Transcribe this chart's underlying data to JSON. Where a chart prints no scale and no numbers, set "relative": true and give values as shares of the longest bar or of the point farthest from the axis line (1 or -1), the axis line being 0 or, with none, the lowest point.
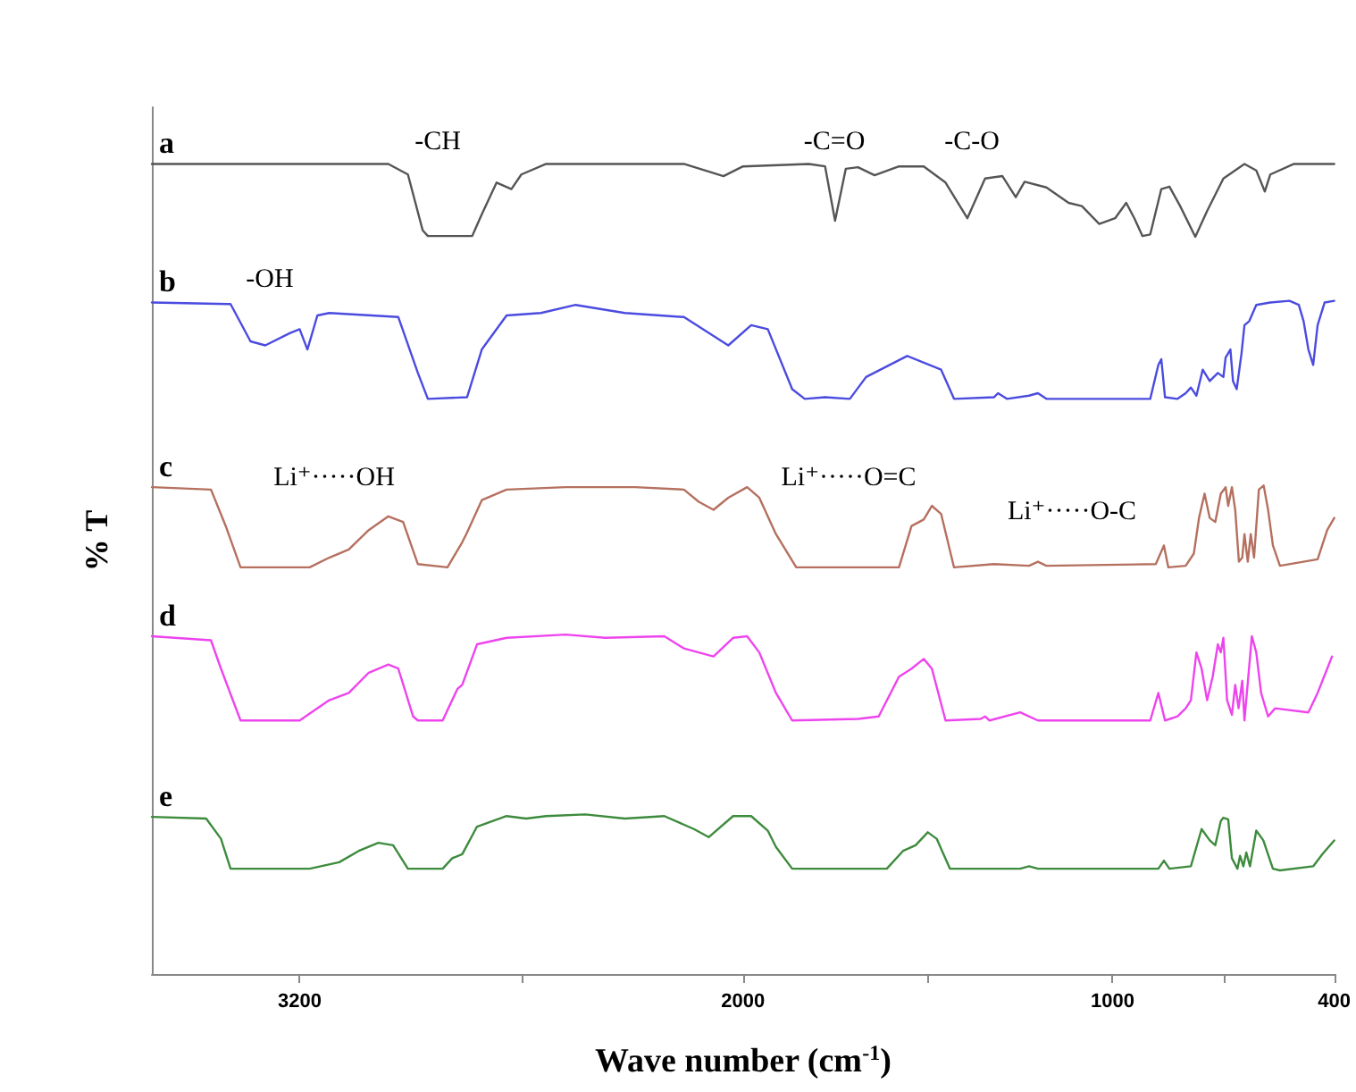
{
  "chart_data": {
    "type": "line",
    "relative": true,
    "xlabel": "Wave number (cm$^{-1}$)",
    "ylabel": "% T",
    "xlim": [
      3600,
      400
    ],
    "xticks": [
      3200,
      {
        "value": 2600,
        "label": null
      },
      2000,
      {
        "value": 1500,
        "label": null
      },
      1000,
      {
        "value": 700,
        "label": null
      },
      400
    ],
    "annotations": [
      "-CH",
      "-C=O",
      "-C-O",
      "-OH",
      "Li⁺·····OH",
      "Li⁺·····O=C",
      "Li⁺·····O-C"
    ],
    "series": [
      {
        "name": "a",
        "color": "#555555",
        "x": [
          3600,
          2960,
          2907,
          2867,
          2853,
          2733,
          2707,
          2667,
          2627,
          2600,
          2533,
          2160,
          2053,
          2000,
          1822,
          1778,
          1751,
          1722,
          1689,
          1644,
          1578,
          1511,
          1452,
          1393,
          1345,
          1298,
          1262,
          1238,
          1179,
          1119,
          1083,
          1036,
          993,
          963,
          941,
          919,
          898,
          868,
          846,
          817,
          776,
          744,
          700,
          643,
          611,
          588,
          573,
          509,
          400
        ],
        "values": [
          1.0,
          1.0,
          0.987,
          0.918,
          0.911,
          0.911,
          0.938,
          0.977,
          0.969,
          0.987,
          1.0,
          1.0,
          0.985,
          0.997,
          1.0,
          0.997,
          0.93,
          0.994,
          0.996,
          0.986,
          0.997,
          0.997,
          0.977,
          0.933,
          0.982,
          0.985,
          0.959,
          0.978,
          0.971,
          0.952,
          0.948,
          0.926,
          0.933,
          0.952,
          0.933,
          0.911,
          0.913,
          0.969,
          0.972,
          0.948,
          0.91,
          0.942,
          0.982,
          1.0,
          0.992,
          0.966,
          0.987,
          1.0,
          1.0
        ]
      },
      {
        "name": "b",
        "color": "#4b4be0",
        "x": [
          3600,
          3387,
          3333,
          3293,
          3227,
          3200,
          3179,
          3152,
          3120,
          2933,
          2880,
          2853,
          2747,
          2707,
          2640,
          2547,
          2453,
          2320,
          2160,
          2040,
          1978,
          1933,
          1867,
          1833,
          1778,
          1711,
          1667,
          1556,
          1464,
          1429,
          1321,
          1310,
          1286,
          1226,
          1202,
          1179,
          898,
          876,
          868,
          858,
          824,
          802,
          788,
          773,
          756,
          737,
          715,
          700,
          694,
          681,
          674,
          664,
          651,
          643,
          630,
          611,
          573,
          521,
          496,
          483,
          470,
          457,
          445,
          426,
          400
        ],
        "values": [
          0.829,
          0.827,
          0.781,
          0.776,
          0.791,
          0.796,
          0.771,
          0.813,
          0.816,
          0.811,
          0.742,
          0.71,
          0.712,
          0.771,
          0.813,
          0.816,
          0.826,
          0.816,
          0.811,
          0.776,
          0.801,
          0.796,
          0.722,
          0.71,
          0.712,
          0.71,
          0.737,
          0.763,
          0.746,
          0.71,
          0.712,
          0.717,
          0.71,
          0.714,
          0.717,
          0.71,
          0.71,
          0.752,
          0.759,
          0.712,
          0.71,
          0.717,
          0.724,
          0.714,
          0.746,
          0.732,
          0.742,
          0.737,
          0.761,
          0.771,
          0.732,
          0.722,
          0.766,
          0.801,
          0.806,
          0.826,
          0.829,
          0.831,
          0.826,
          0.806,
          0.771,
          0.752,
          0.801,
          0.829,
          0.831
        ]
      },
      {
        "name": "c",
        "color": "#b5705f",
        "x": [
          3600,
          3440,
          3400,
          3360,
          3173,
          3120,
          3067,
          3013,
          2960,
          2920,
          2880,
          2800,
          2760,
          2747,
          2707,
          2640,
          2480,
          2293,
          2160,
          2120,
          2080,
          2040,
          1989,
          1956,
          1911,
          1856,
          1578,
          1544,
          1511,
          1489,
          1464,
          1429,
          1321,
          1226,
          1202,
          1179,
          883,
          861,
          849,
          802,
          780,
          766,
          751,
          737,
          722,
          707,
          694,
          687,
          677,
          668,
          658,
          649,
          643,
          634,
          626,
          617,
          604,
          591,
          579,
          566,
          547,
          445,
          419,
          400
        ],
        "values": [
          0.601,
          0.598,
          0.553,
          0.502,
          0.502,
          0.514,
          0.524,
          0.548,
          0.565,
          0.558,
          0.506,
          0.502,
          0.533,
          0.545,
          0.585,
          0.598,
          0.601,
          0.601,
          0.598,
          0.583,
          0.573,
          0.588,
          0.601,
          0.588,
          0.543,
          0.502,
          0.502,
          0.553,
          0.561,
          0.578,
          0.568,
          0.502,
          0.506,
          0.504,
          0.509,
          0.504,
          0.506,
          0.529,
          0.502,
          0.504,
          0.519,
          0.563,
          0.593,
          0.563,
          0.558,
          0.593,
          0.601,
          0.578,
          0.601,
          0.573,
          0.509,
          0.514,
          0.543,
          0.509,
          0.543,
          0.514,
          0.598,
          0.603,
          0.573,
          0.529,
          0.504,
          0.512,
          0.548,
          0.563
        ]
      },
      {
        "name": "d",
        "color": "#ee44ee",
        "x": [
          3600,
          3440,
          3413,
          3360,
          3200,
          3120,
          3067,
          3013,
          2960,
          2933,
          2893,
          2880,
          2813,
          2773,
          2760,
          2720,
          2640,
          2480,
          2373,
          2213,
          2160,
          2080,
          2027,
          1989,
          1956,
          1911,
          1867,
          1689,
          1633,
          1578,
          1544,
          1511,
          1489,
          1452,
          1357,
          1345,
          1333,
          1250,
          1202,
          898,
          876,
          858,
          824,
          802,
          788,
          773,
          759,
          744,
          729,
          715,
          707,
          700,
          690,
          677,
          668,
          659,
          649,
          643,
          623,
          611,
          598,
          579,
          560,
          470,
          445,
          419,
          406
        ],
        "values": [
          0.417,
          0.412,
          0.377,
          0.313,
          0.313,
          0.338,
          0.347,
          0.372,
          0.382,
          0.377,
          0.318,
          0.313,
          0.313,
          0.352,
          0.357,
          0.407,
          0.415,
          0.419,
          0.415,
          0.417,
          0.402,
          0.392,
          0.415,
          0.417,
          0.397,
          0.347,
          0.313,
          0.315,
          0.318,
          0.367,
          0.377,
          0.389,
          0.377,
          0.313,
          0.315,
          0.318,
          0.313,
          0.323,
          0.313,
          0.313,
          0.347,
          0.313,
          0.318,
          0.328,
          0.338,
          0.397,
          0.377,
          0.338,
          0.367,
          0.407,
          0.397,
          0.415,
          0.338,
          0.32,
          0.357,
          0.328,
          0.362,
          0.313,
          0.417,
          0.397,
          0.347,
          0.318,
          0.328,
          0.323,
          0.347,
          0.377,
          0.392
        ]
      },
      {
        "name": "e",
        "color": "#3d8b3d",
        "x": [
          3600,
          3453,
          3413,
          3387,
          3173,
          3093,
          3040,
          2987,
          2947,
          2907,
          2813,
          2787,
          2760,
          2720,
          2640,
          2587,
          2533,
          2427,
          2320,
          2213,
          2133,
          2093,
          2027,
          1978,
          1933,
          1911,
          1867,
          1611,
          1567,
          1533,
          1500,
          1476,
          1440,
          1250,
          1226,
          1202,
          876,
          861,
          846,
          788,
          759,
          737,
          722,
          707,
          700,
          687,
          677,
          662,
          655,
          646,
          638,
          628,
          611,
          592,
          566,
          547,
          457,
          432,
          400
        ],
        "values": [
          0.194,
          0.192,
          0.167,
          0.13,
          0.13,
          0.138,
          0.152,
          0.162,
          0.159,
          0.13,
          0.13,
          0.143,
          0.148,
          0.182,
          0.195,
          0.192,
          0.195,
          0.197,
          0.192,
          0.195,
          0.179,
          0.169,
          0.195,
          0.195,
          0.177,
          0.157,
          0.13,
          0.13,
          0.152,
          0.159,
          0.175,
          0.167,
          0.13,
          0.13,
          0.133,
          0.13,
          0.13,
          0.14,
          0.13,
          0.133,
          0.179,
          0.165,
          0.159,
          0.189,
          0.193,
          0.191,
          0.143,
          0.13,
          0.146,
          0.133,
          0.15,
          0.133,
          0.177,
          0.165,
          0.13,
          0.128,
          0.133,
          0.148,
          0.165
        ]
      }
    ]
  }
}
